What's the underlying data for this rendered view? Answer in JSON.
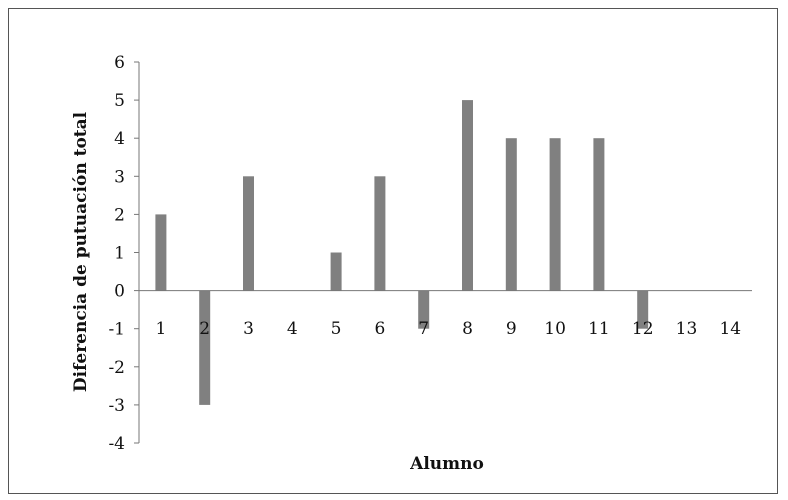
{
  "chart_data": {
    "type": "bar",
    "title": "",
    "xlabel": "Alumno",
    "ylabel": "Diferencia de putuación total",
    "categories": [
      "1",
      "2",
      "3",
      "4",
      "5",
      "6",
      "7",
      "8",
      "9",
      "10",
      "11",
      "12",
      "13",
      "14"
    ],
    "values": [
      2,
      -3,
      3,
      0,
      1,
      3,
      -1,
      5,
      4,
      4,
      4,
      -1,
      0,
      0
    ],
    "ylim": [
      -4,
      6
    ],
    "yticks": [
      "6",
      "5",
      "4",
      "3",
      "2",
      "1",
      "0",
      "-1",
      "-2",
      "-3",
      "-4"
    ],
    "grid": false,
    "legend": "none",
    "bar_color": "#808080",
    "axis_color": "#777777"
  }
}
